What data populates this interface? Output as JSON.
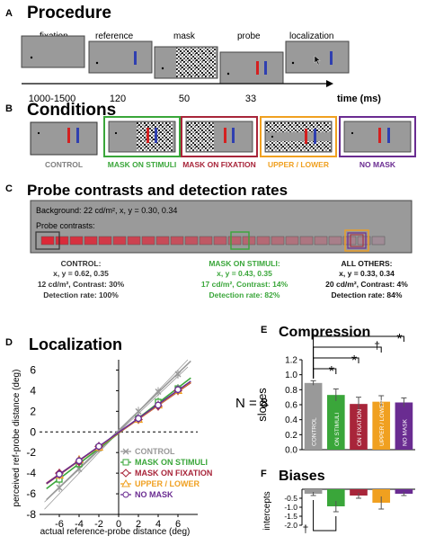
{
  "procedure": {
    "letter": "A",
    "title": "Procedure",
    "frames": [
      {
        "label": "fixation",
        "duration": "1000-1500"
      },
      {
        "label": "reference",
        "duration": "120"
      },
      {
        "label": "mask",
        "duration": "50"
      },
      {
        "label": "probe",
        "duration": "33"
      },
      {
        "label": "localization",
        "duration": ""
      }
    ],
    "time_label": "time (ms)"
  },
  "conditions": {
    "letter": "B",
    "title": "Conditions",
    "items": [
      {
        "label": "CONTROL",
        "color": "#7f7f7f"
      },
      {
        "label": "MASK ON STIMULI",
        "color": "#3aa63a"
      },
      {
        "label": "MASK ON FIXATION",
        "color": "#a8253a"
      },
      {
        "label": "UPPER / LOWER",
        "color": "#f0a020"
      },
      {
        "label": "NO MASK",
        "color": "#6a2c91"
      }
    ]
  },
  "contrasts": {
    "letter": "C",
    "title": "Probe contrasts and detection rates",
    "background_text": "Background: 22 cd/m², x, y = 0.30, 0.34",
    "probe_label": "Probe contrasts:",
    "blocks": [
      {
        "heading": "CONTROL:",
        "line1": "x, y = 0.62, 0.35",
        "line2": "12 cd/m², Contrast: 30%",
        "line3": "Detection rate: 100%",
        "color": "#333333"
      },
      {
        "heading": "MASK ON STIMULI:",
        "line1": "x, y = 0.43, 0.35",
        "line2": "17 cd/m², Contrast: 14%",
        "line3": "Detection rate: 82%",
        "color": "#3aa63a"
      },
      {
        "heading": "ALL OTHERS:",
        "line1": "x, y = 0.33, 0.34",
        "line2": "20 cd/m², Contrast: 4%",
        "line3": "Detection rate: 84%",
        "color": "#111111"
      }
    ]
  },
  "localization": {
    "letter": "D",
    "title": "Localization",
    "n_label": "N = 8",
    "xlabel": "actual reference-probe distance (deg)",
    "ylabel": "perceived ref-probe distance (deg)",
    "legend": [
      "CONTROL",
      "MASK ON STIMULI",
      "MASK ON FIXATION",
      "UPPER / LOWER",
      "NO MASK"
    ]
  },
  "compression": {
    "letter": "E",
    "title": "Compression",
    "ylabel": "slopes",
    "sig": [
      "*",
      "*",
      "†",
      "*"
    ]
  },
  "biases": {
    "letter": "F",
    "title": "Biases",
    "ylabel": "intercepts",
    "sig": "†"
  },
  "chart_data": [
    {
      "type": "line",
      "title": "Localization",
      "xlabel": "actual reference-probe distance (deg)",
      "ylabel": "perceived ref-probe distance (deg)",
      "x": [
        -6,
        -4,
        -2,
        2,
        4,
        6
      ],
      "xlim": [
        -8,
        8
      ],
      "ylim": [
        -8,
        7
      ],
      "xticks": [
        -6,
        -4,
        -2,
        0,
        2,
        4,
        6
      ],
      "yticks": [
        -8,
        -6,
        -4,
        -2,
        0,
        2,
        4,
        6
      ],
      "series": [
        {
          "name": "CONTROL",
          "color": "#999999",
          "values": [
            -5.4,
            -3.6,
            -1.6,
            2.0,
            3.9,
            5.6
          ]
        },
        {
          "name": "MASK ON STIMULI",
          "color": "#3aa63a",
          "values": [
            -4.6,
            -3.1,
            -1.5,
            1.3,
            2.9,
            4.2
          ]
        },
        {
          "name": "MASK ON FIXATION",
          "color": "#a8253a",
          "values": [
            -4.0,
            -2.9,
            -1.4,
            1.2,
            2.5,
            4.0
          ]
        },
        {
          "name": "UPPER / LOWER",
          "color": "#f0a020",
          "values": [
            -4.2,
            -2.7,
            -1.5,
            1.2,
            2.6,
            4.0
          ]
        },
        {
          "name": "NO MASK",
          "color": "#6a2c91",
          "values": [
            -4.1,
            -2.8,
            -1.4,
            1.3,
            2.6,
            4.1
          ]
        }
      ]
    },
    {
      "type": "bar",
      "title": "Compression",
      "ylabel": "slopes",
      "categories": [
        "CONTROL",
        "ON STIMULI",
        "ON FIXATION",
        "UPPER / LOWER",
        "NO MASK"
      ],
      "values": [
        0.89,
        0.73,
        0.61,
        0.64,
        0.63
      ],
      "errors": [
        0.03,
        0.08,
        0.09,
        0.08,
        0.06
      ],
      "colors": [
        "#999999",
        "#3aa63a",
        "#a8253a",
        "#f0a020",
        "#6a2c91"
      ],
      "ylim": [
        0,
        1.2
      ],
      "yticks": [
        0,
        0.2,
        0.4,
        0.6,
        0.8,
        1.0,
        1.2
      ]
    },
    {
      "type": "bar",
      "title": "Biases",
      "ylabel": "intercepts",
      "categories": [
        "CONTROL",
        "ON STIMULI",
        "ON FIXATION",
        "UPPER / LOWER",
        "NO MASK"
      ],
      "values": [
        -0.25,
        -0.95,
        -0.35,
        -0.75,
        -0.25
      ],
      "errors": [
        0.1,
        0.3,
        0.15,
        0.35,
        0.1
      ],
      "colors": [
        "#999999",
        "#3aa63a",
        "#a8253a",
        "#f0a020",
        "#6a2c91"
      ],
      "ylim": [
        -2.0,
        0
      ],
      "yticks": [
        -0.5,
        -1.0,
        -1.5,
        -2.0
      ]
    }
  ]
}
